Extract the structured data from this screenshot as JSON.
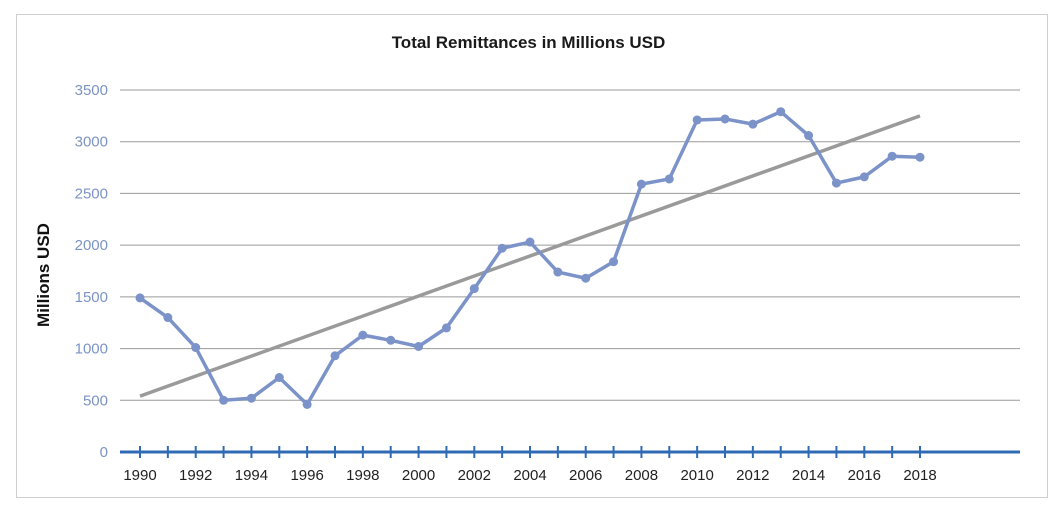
{
  "chart_data": {
    "type": "line",
    "title": "Total Remittances in Millions USD",
    "xlabel": "",
    "ylabel": "Millions USD",
    "ylim": [
      0,
      3500
    ],
    "yticks": [
      0,
      500,
      1000,
      1500,
      2000,
      2500,
      3000,
      3500
    ],
    "xlim": [
      1990,
      2018
    ],
    "xticks": [
      1990,
      1992,
      1994,
      1996,
      1998,
      2000,
      2002,
      2004,
      2006,
      2008,
      2010,
      2012,
      2014,
      2016,
      2018
    ],
    "grid": true,
    "x": [
      1990,
      1991,
      1992,
      1993,
      1994,
      1995,
      1996,
      1997,
      1998,
      1999,
      2000,
      2001,
      2002,
      2003,
      2004,
      2005,
      2006,
      2007,
      2008,
      2009,
      2010,
      2011,
      2012,
      2013,
      2014,
      2015,
      2016,
      2017,
      2018
    ],
    "series": [
      {
        "values": [
          1490,
          1300,
          1010,
          500,
          520,
          720,
          460,
          930,
          1130,
          1080,
          1020,
          1200,
          1580,
          1970,
          2030,
          1740,
          1680,
          1840,
          2590,
          2640,
          3210,
          3220,
          3170,
          3290,
          3060,
          2600,
          2660,
          2860,
          2850
        ],
        "color": "#7b93c9"
      }
    ],
    "trendline": {
      "x": [
        1990,
        2018
      ],
      "values": [
        540,
        3250
      ],
      "color": "#9a9a9a"
    },
    "axis_color": "#2f6bb5",
    "grid_color": "#9a9a9a"
  }
}
